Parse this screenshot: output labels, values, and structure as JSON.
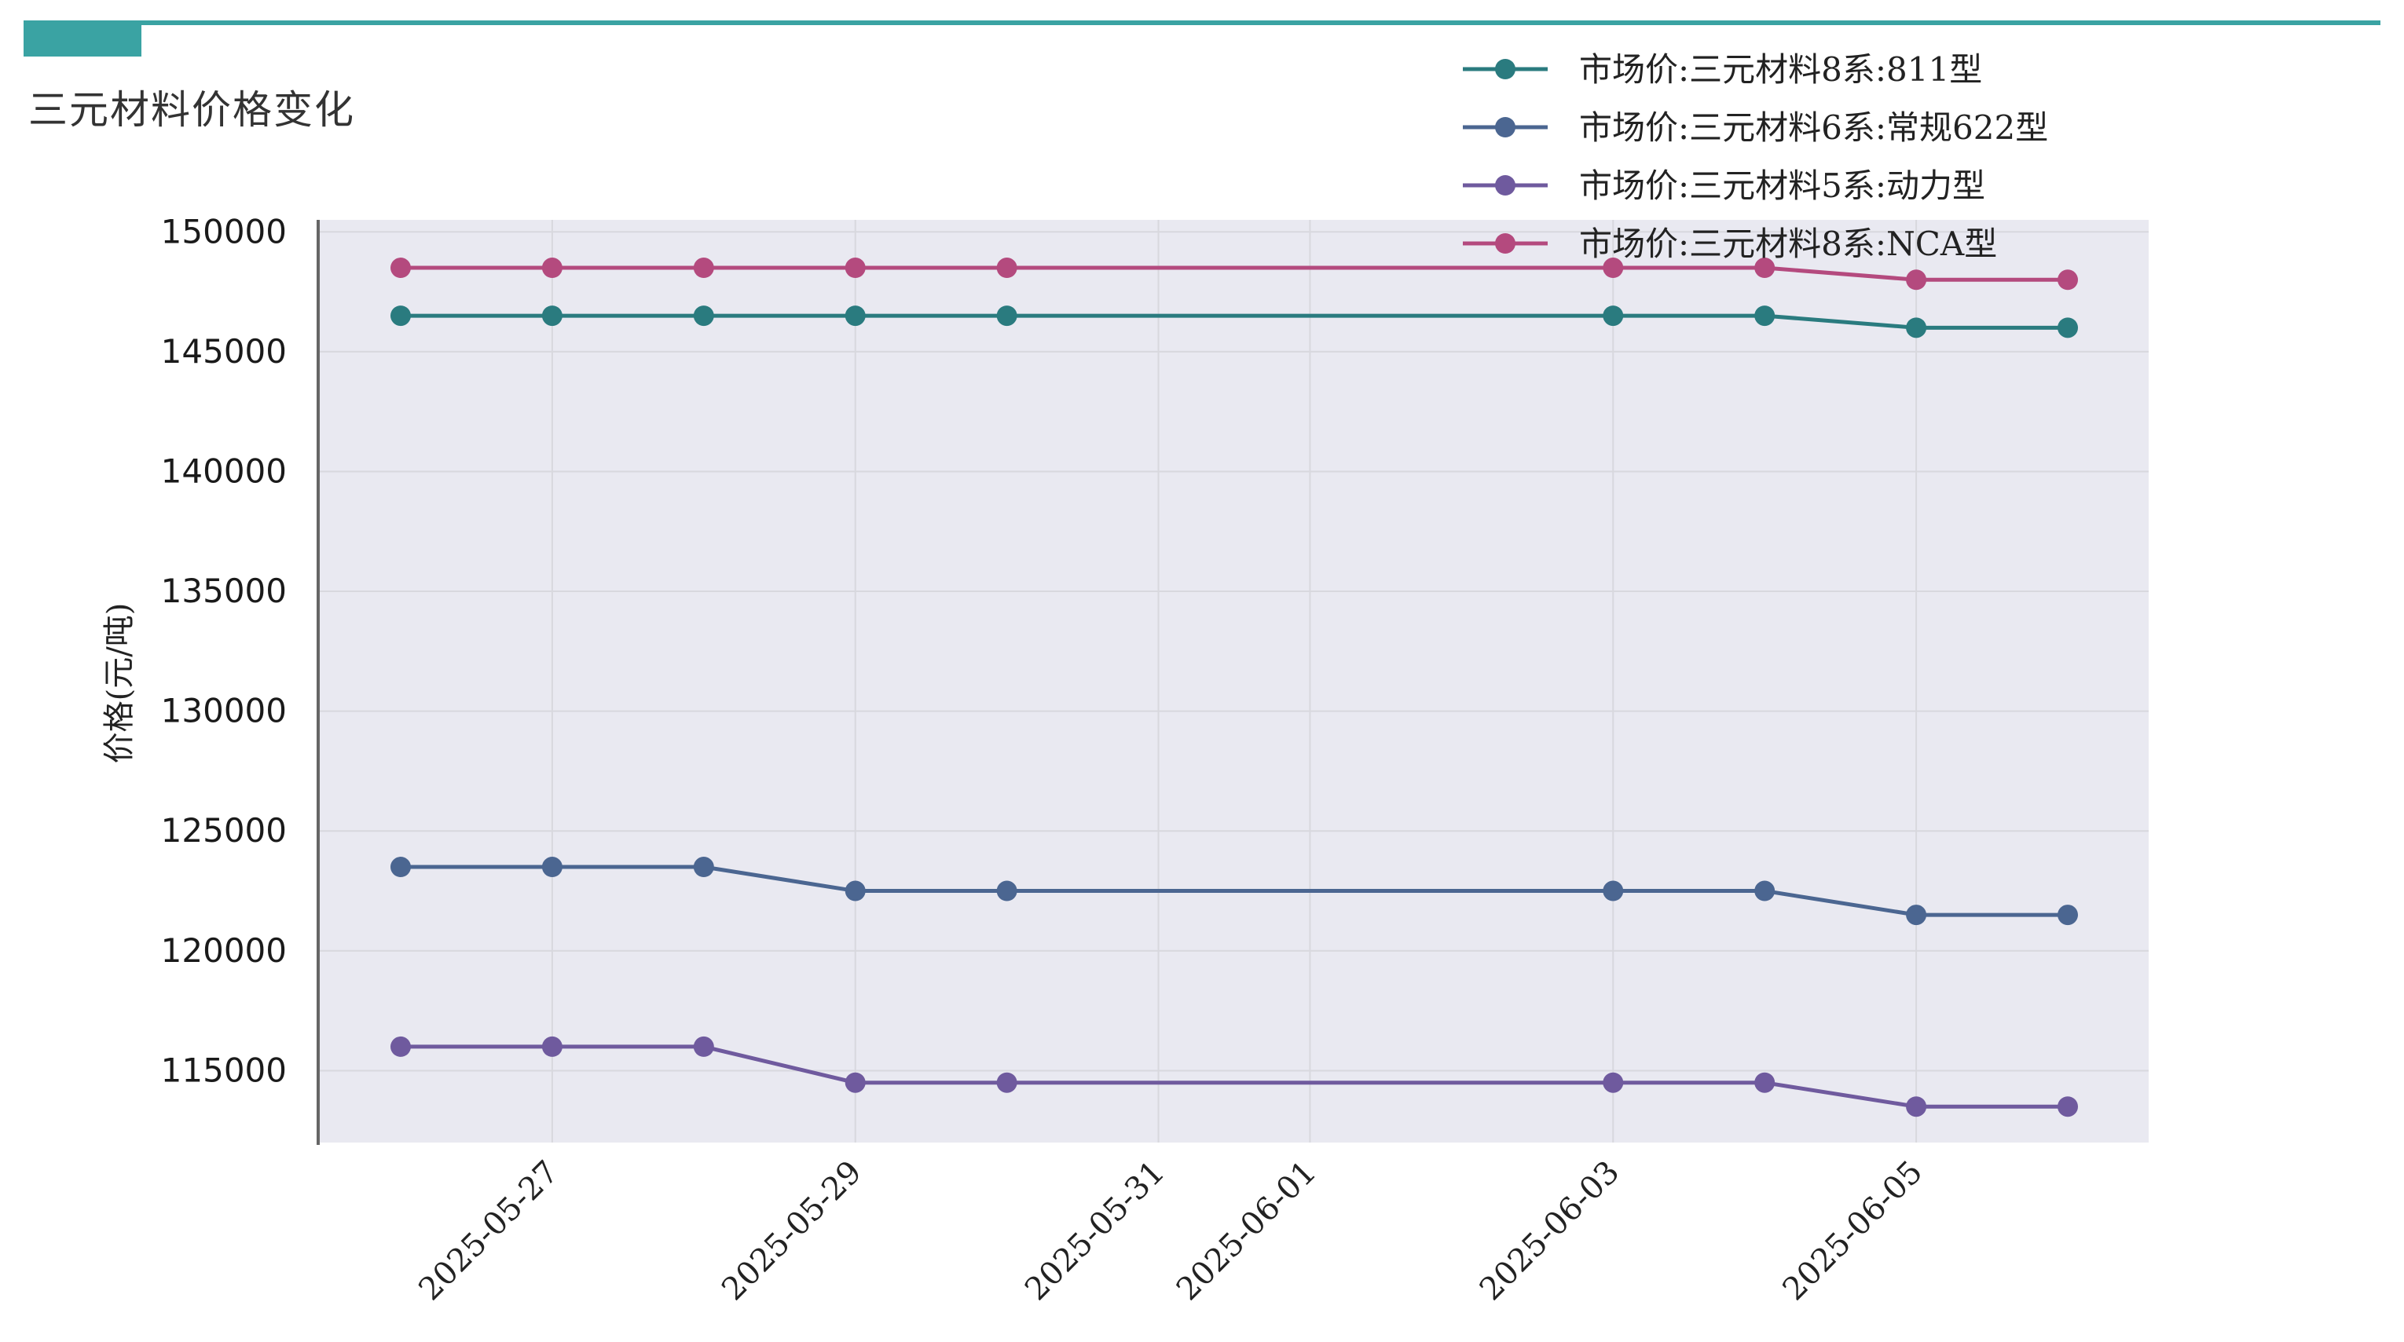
{
  "page": {
    "title": "三元材料价格变化",
    "accent_color": "#3aa3a3"
  },
  "chart_data": {
    "type": "line",
    "title": "",
    "xlabel": "",
    "ylabel": "价格(元/吨)",
    "x": [
      "2025-05-26",
      "2025-05-27",
      "2025-05-28",
      "2025-05-29",
      "2025-05-30",
      "2025-06-03",
      "2025-06-04",
      "2025-06-05",
      "2025-06-06"
    ],
    "xlim": [
      "2025-05-25",
      "2025-06-06"
    ],
    "ylim": [
      112000,
      150500
    ],
    "x_tick_labels": [
      "2025-05-27",
      "2025-05-29",
      "2025-05-31",
      "2025-06-01",
      "2025-06-03",
      "2025-06-05"
    ],
    "y_tick_labels": [
      "115000",
      "120000",
      "125000",
      "130000",
      "135000",
      "140000",
      "145000",
      "150000"
    ],
    "grid": true,
    "legend_position": "top-right",
    "plot_background": "#e9e9f1",
    "series": [
      {
        "name": "市场价:三元材料8系:811型",
        "color": "#2a7b7f",
        "values": [
          146500,
          146500,
          146500,
          146500,
          146500,
          146500,
          146500,
          146000,
          146000
        ]
      },
      {
        "name": "市场价:三元材料6系:常规622型",
        "color": "#4b6691",
        "values": [
          123500,
          123500,
          123500,
          122500,
          122500,
          122500,
          122500,
          121500,
          121500
        ]
      },
      {
        "name": "市场价:三元材料5系:动力型",
        "color": "#6f5a9e",
        "values": [
          116000,
          116000,
          116000,
          114500,
          114500,
          114500,
          114500,
          113500,
          113500
        ]
      },
      {
        "name": "市场价:三元材料8系:NCA型",
        "color": "#b44a7e",
        "values": [
          148500,
          148500,
          148500,
          148500,
          148500,
          148500,
          148500,
          148000,
          148000
        ]
      }
    ]
  }
}
